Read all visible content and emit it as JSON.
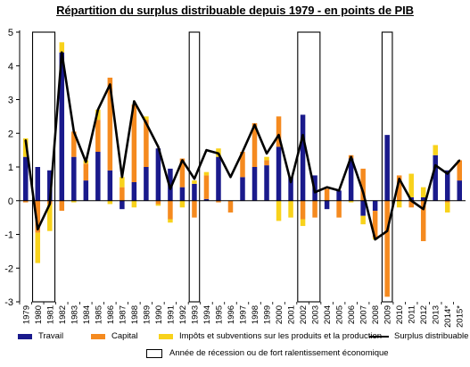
{
  "chart_data": {
    "type": "bar",
    "title": "Répartition du surplus distribuable depuis 1979 - en points de PIB",
    "xlabel": "",
    "ylabel": "",
    "ylim": [
      -3,
      5
    ],
    "yticks": [
      "5",
      "4",
      "3",
      "2",
      "1",
      "0",
      "-1",
      "-2",
      "-3"
    ],
    "categories": [
      "1979",
      "1980",
      "1981",
      "1982",
      "1983",
      "1984",
      "1985",
      "1986",
      "1987",
      "1988",
      "1989",
      "1990",
      "1991",
      "1992",
      "1993",
      "1994",
      "1995",
      "1996",
      "1997",
      "1998",
      "1999",
      "2000",
      "2001",
      "2002",
      "2003",
      "2004",
      "2005",
      "2006",
      "2007",
      "2008",
      "2009",
      "2010",
      "2011",
      "2012",
      "2013",
      "2014*",
      "2015*"
    ],
    "series": [
      {
        "name": "Travail",
        "color": "#1a1a8c",
        "values": [
          1.3,
          1.0,
          0.9,
          4.4,
          1.3,
          0.6,
          1.45,
          0.9,
          -0.25,
          0.55,
          1.0,
          1.55,
          0.95,
          0.4,
          0.5,
          0.05,
          1.3,
          0.0,
          0.7,
          1.0,
          1.05,
          1.6,
          0.7,
          2.55,
          0.75,
          -0.25,
          0.3,
          1.25,
          -0.45,
          -0.3,
          1.95,
          0.0,
          0.1,
          0.1,
          1.35,
          0.9,
          0.6
        ]
      },
      {
        "name": "Capital",
        "color": "#f58a1f",
        "values": [
          -0.05,
          -0.95,
          -0.1,
          -0.3,
          0.75,
          0.5,
          0.95,
          2.75,
          0.4,
          2.3,
          1.4,
          -0.1,
          -0.55,
          0.85,
          -0.5,
          0.7,
          -0.05,
          -0.35,
          0.75,
          1.3,
          0.15,
          0.9,
          0.0,
          -0.55,
          -0.5,
          0.35,
          -0.5,
          0.1,
          0.95,
          -0.8,
          -2.85,
          0.75,
          -0.2,
          -1.2,
          0.0,
          -0.05,
          0.6
        ]
      },
      {
        "name": "Impôts et subventions sur les produits et la production",
        "color": "#f8d21b",
        "values": [
          0.55,
          -0.9,
          -0.8,
          0.3,
          -0.05,
          0.1,
          0.3,
          -0.1,
          0.3,
          -0.2,
          0.1,
          -0.05,
          -0.1,
          -0.2,
          0.1,
          0.1,
          0.25,
          0.0,
          0.0,
          0.0,
          0.1,
          -0.6,
          -0.5,
          -0.2,
          0.0,
          0.0,
          0.0,
          -0.05,
          -0.25,
          -0.05,
          0.0,
          -0.2,
          0.7,
          0.3,
          0.3,
          -0.3,
          0.0
        ]
      },
      {
        "name": "Surplus distribuable",
        "color": "#000000",
        "values": [
          1.8,
          -0.85,
          -0.1,
          4.4,
          2.05,
          1.15,
          2.7,
          3.45,
          0.7,
          2.95,
          2.3,
          1.6,
          0.35,
          1.2,
          0.65,
          1.5,
          1.4,
          0.7,
          1.45,
          2.25,
          1.4,
          1.95,
          0.55,
          1.95,
          0.25,
          0.4,
          0.3,
          1.3,
          0.25,
          -1.15,
          -0.9,
          0.65,
          0.0,
          -0.25,
          1.05,
          0.8,
          1.2
        ]
      }
    ],
    "recession_periods": [
      [
        "1980",
        "1981"
      ],
      [
        "1993",
        "1993"
      ],
      [
        "2002",
        "2003"
      ],
      [
        "2009",
        "2009"
      ]
    ],
    "recession_label": "Année de récession ou de fort ralentissement économique",
    "grid": false,
    "legend_position": "bottom"
  }
}
